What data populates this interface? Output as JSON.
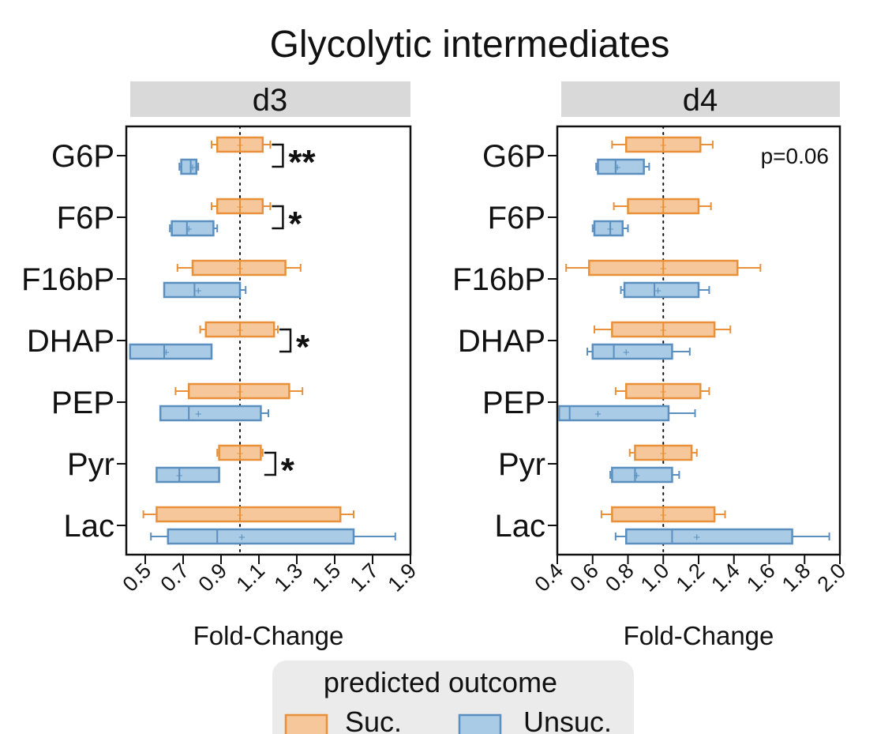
{
  "title": "Glycolytic intermediates",
  "colors": {
    "suc_fill": "#f6c79b",
    "suc_stroke": "#e8913a",
    "unsuc_fill": "#a9cbe6",
    "unsuc_stroke": "#5a8fbf",
    "strip": "#d9d9d9",
    "legend_bg": "#ebebeb"
  },
  "legend": {
    "title": "predicted outcome",
    "items": [
      "Suc.",
      "Unsuc."
    ]
  },
  "chart_data": [
    {
      "type": "boxplot",
      "panel": "d3",
      "xlabel": "Fold-Change",
      "ylabel": "",
      "xlim": [
        0.4,
        1.9
      ],
      "xticks": [
        0.5,
        0.7,
        0.9,
        1.1,
        1.3,
        1.5,
        1.7,
        1.9
      ],
      "xtick_labels": [
        "0.5",
        "0.7",
        "0.9",
        "1.1",
        "1.3",
        "1.5",
        "1.7",
        "1.9"
      ],
      "reference_line": 1.0,
      "categories": [
        "G6P",
        "F6P",
        "F16bP",
        "DHAP",
        "PEP",
        "Pyr",
        "Lac"
      ],
      "series": [
        {
          "name": "Suc.",
          "boxes": [
            {
              "whislo": 0.85,
              "q1": 0.88,
              "med": 1.0,
              "q3": 1.12,
              "whishi": 1.16,
              "mean": 1.0
            },
            {
              "whislo": 0.85,
              "q1": 0.88,
              "med": 1.0,
              "q3": 1.12,
              "whishi": 1.16,
              "mean": 1.0
            },
            {
              "whislo": 0.67,
              "q1": 0.75,
              "med": 1.0,
              "q3": 1.24,
              "whishi": 1.32,
              "mean": 1.0
            },
            {
              "whislo": 0.79,
              "q1": 0.82,
              "med": 1.0,
              "q3": 1.18,
              "whishi": 1.2,
              "mean": 1.0
            },
            {
              "whislo": 0.66,
              "q1": 0.73,
              "med": 1.0,
              "q3": 1.26,
              "whishi": 1.33,
              "mean": 1.0
            },
            {
              "whislo": 0.88,
              "q1": 0.89,
              "med": 1.0,
              "q3": 1.11,
              "whishi": 1.12,
              "mean": 1.0
            },
            {
              "whislo": 0.49,
              "q1": 0.56,
              "med": 1.0,
              "q3": 1.53,
              "whishi": 1.6,
              "mean": 1.0
            }
          ]
        },
        {
          "name": "Unsuc.",
          "boxes": [
            {
              "whislo": 0.68,
              "q1": 0.69,
              "med": 0.74,
              "q3": 0.77,
              "whishi": 0.78,
              "mean": 0.75
            },
            {
              "whislo": 0.63,
              "q1": 0.64,
              "med": 0.72,
              "q3": 0.86,
              "whishi": 0.88,
              "mean": 0.73
            },
            {
              "whislo": 0.6,
              "q1": 0.6,
              "med": 0.76,
              "q3": 1.0,
              "whishi": 1.03,
              "mean": 0.78
            },
            {
              "whislo": 0.42,
              "q1": 0.42,
              "med": 0.6,
              "q3": 0.85,
              "whishi": 0.85,
              "mean": 0.61
            },
            {
              "whislo": 0.58,
              "q1": 0.58,
              "med": 0.73,
              "q3": 1.11,
              "whishi": 1.15,
              "mean": 0.78
            },
            {
              "whislo": 0.56,
              "q1": 0.56,
              "med": 0.68,
              "q3": 0.89,
              "whishi": 0.89,
              "mean": 0.68
            },
            {
              "whislo": 0.53,
              "q1": 0.62,
              "med": 0.88,
              "q3": 1.6,
              "whishi": 1.82,
              "mean": 1.01
            }
          ]
        }
      ],
      "annotations": [
        {
          "category": "G6P",
          "text": "**"
        },
        {
          "category": "F6P",
          "text": "*"
        },
        {
          "category": "DHAP",
          "text": "*"
        },
        {
          "category": "Pyr",
          "text": "*"
        }
      ]
    },
    {
      "type": "boxplot",
      "panel": "d4",
      "xlabel": "Fold-Change",
      "ylabel": "",
      "xlim": [
        0.4,
        2.0
      ],
      "xticks": [
        0.4,
        0.6,
        0.8,
        1.0,
        1.2,
        1.4,
        1.6,
        1.8,
        2.0
      ],
      "xtick_labels": [
        "0.4",
        "0.6",
        "0.8",
        "1.0",
        "1.2",
        "1.4",
        "1.6",
        "1.8",
        "2.0"
      ],
      "reference_line": 1.0,
      "categories": [
        "G6P",
        "F6P",
        "F16bP",
        "DHAP",
        "PEP",
        "Pyr",
        "Lac"
      ],
      "series": [
        {
          "name": "Suc.",
          "boxes": [
            {
              "whislo": 0.71,
              "q1": 0.79,
              "med": 1.0,
              "q3": 1.21,
              "whishi": 1.28,
              "mean": 1.0
            },
            {
              "whislo": 0.72,
              "q1": 0.8,
              "med": 1.0,
              "q3": 1.2,
              "whishi": 1.27,
              "mean": 1.0
            },
            {
              "whislo": 0.45,
              "q1": 0.58,
              "med": 1.0,
              "q3": 1.42,
              "whishi": 1.55,
              "mean": 1.0
            },
            {
              "whislo": 0.61,
              "q1": 0.71,
              "med": 1.0,
              "q3": 1.29,
              "whishi": 1.38,
              "mean": 1.0
            },
            {
              "whislo": 0.73,
              "q1": 0.79,
              "med": 1.0,
              "q3": 1.21,
              "whishi": 1.26,
              "mean": 1.0
            },
            {
              "whislo": 0.81,
              "q1": 0.84,
              "med": 1.0,
              "q3": 1.16,
              "whishi": 1.19,
              "mean": 1.0
            },
            {
              "whislo": 0.65,
              "q1": 0.71,
              "med": 1.0,
              "q3": 1.29,
              "whishi": 1.35,
              "mean": 1.0
            }
          ]
        },
        {
          "name": "Unsuc.",
          "boxes": [
            {
              "whislo": 0.62,
              "q1": 0.63,
              "med": 0.73,
              "q3": 0.89,
              "whishi": 0.92,
              "mean": 0.74
            },
            {
              "whislo": 0.6,
              "q1": 0.61,
              "med": 0.7,
              "q3": 0.77,
              "whishi": 0.8,
              "mean": 0.7
            },
            {
              "whislo": 0.76,
              "q1": 0.78,
              "med": 0.95,
              "q3": 1.2,
              "whishi": 1.26,
              "mean": 0.97
            },
            {
              "whislo": 0.57,
              "q1": 0.6,
              "med": 0.72,
              "q3": 1.05,
              "whishi": 1.15,
              "mean": 0.79
            },
            {
              "whislo": 0.41,
              "q1": 0.41,
              "med": 0.47,
              "q3": 1.03,
              "whishi": 1.18,
              "mean": 0.63
            },
            {
              "whislo": 0.7,
              "q1": 0.71,
              "med": 0.84,
              "q3": 1.05,
              "whishi": 1.09,
              "mean": 0.85
            },
            {
              "whislo": 0.73,
              "q1": 0.79,
              "med": 1.05,
              "q3": 1.73,
              "whishi": 1.94,
              "mean": 1.19
            }
          ]
        }
      ],
      "annotations": [
        {
          "category": "G6P",
          "text": "p=0.06"
        }
      ]
    }
  ]
}
